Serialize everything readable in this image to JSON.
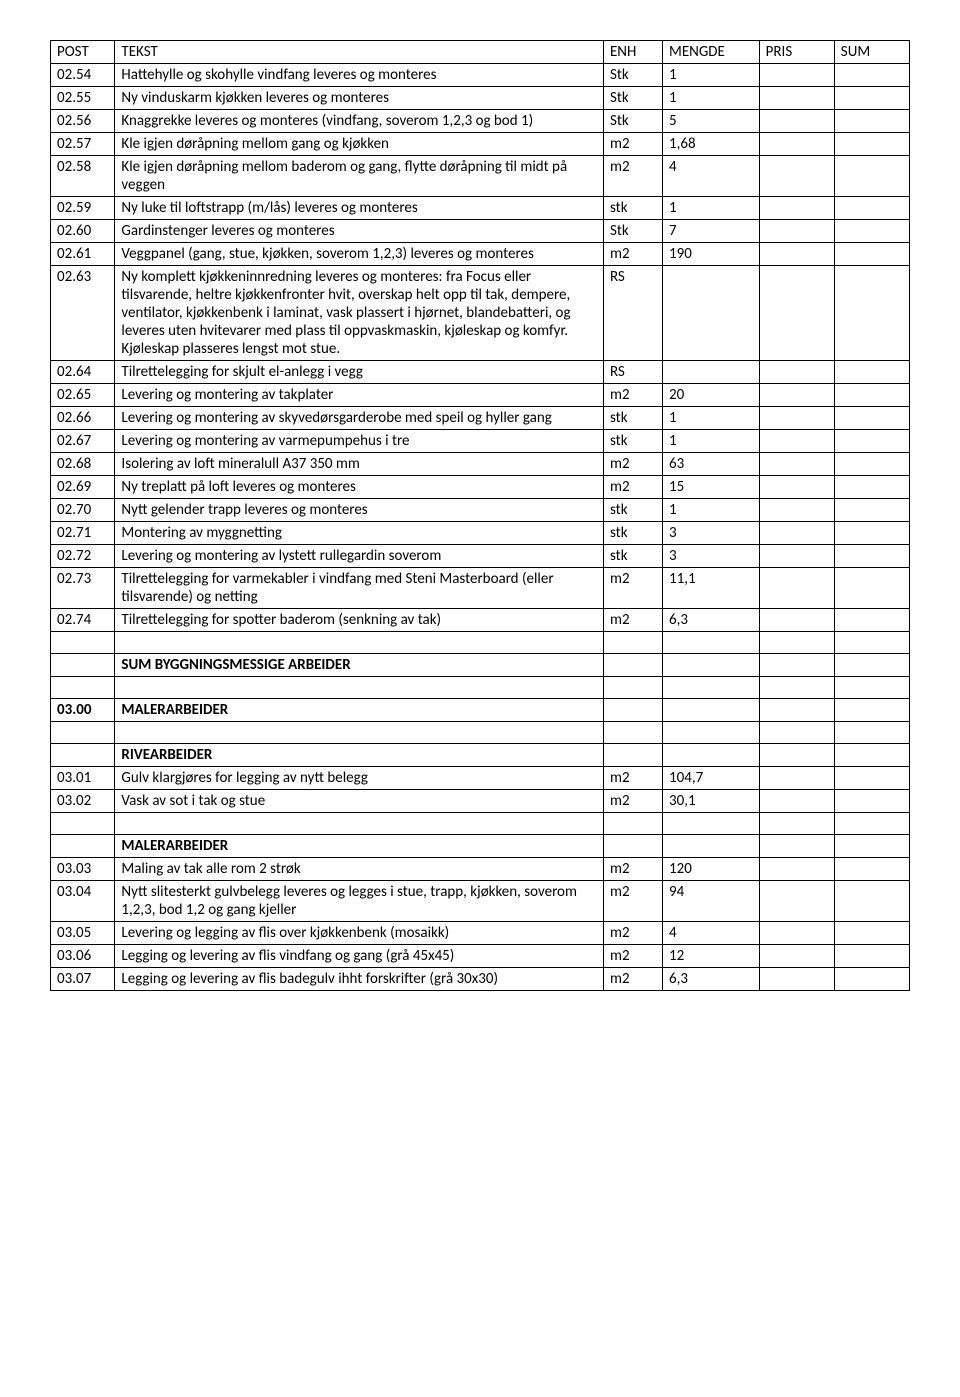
{
  "headers": {
    "post": "POST",
    "tekst": "TEKST",
    "enh": "ENH",
    "mengde": "MENGDE",
    "pris": "PRIS",
    "sum": "SUM"
  },
  "rows": [
    {
      "post": "02.54",
      "tekst": "Hattehylle og skohylle vindfang leveres og monteres",
      "enh": "Stk",
      "mengde": "1",
      "pris": "",
      "sum": "",
      "bold": false
    },
    {
      "post": "02.55",
      "tekst": "Ny vinduskarm kjøkken leveres og monteres",
      "enh": "Stk",
      "mengde": "1",
      "pris": "",
      "sum": "",
      "bold": false
    },
    {
      "post": "02.56",
      "tekst": "Knaggrekke leveres og monteres (vindfang, soverom 1,2,3 og bod 1)",
      "enh": "Stk",
      "mengde": "5",
      "pris": "",
      "sum": "",
      "bold": false
    },
    {
      "post": "02.57",
      "tekst": "Kle igjen døråpning mellom gang og kjøkken",
      "enh": "m2",
      "mengde": "1,68",
      "pris": "",
      "sum": "",
      "bold": false
    },
    {
      "post": "02.58",
      "tekst": "Kle igjen døråpning mellom baderom og gang, flytte døråpning til midt på veggen",
      "enh": "m2",
      "mengde": "4",
      "pris": "",
      "sum": "",
      "bold": false
    },
    {
      "post": "02.59",
      "tekst": "Ny luke til loftstrapp (m/lås) leveres og monteres",
      "enh": "stk",
      "mengde": "1",
      "pris": "",
      "sum": "",
      "bold": false
    },
    {
      "post": "02.60",
      "tekst": "Gardinstenger leveres og monteres",
      "enh": "Stk",
      "mengde": "7",
      "pris": "",
      "sum": "",
      "bold": false
    },
    {
      "post": "02.61",
      "tekst": "Veggpanel (gang, stue, kjøkken, soverom 1,2,3) leveres og monteres",
      "enh": "m2",
      "mengde": "190",
      "pris": "",
      "sum": "",
      "bold": false
    },
    {
      "post": "02.63",
      "tekst": "Ny komplett kjøkkeninnredning leveres og monteres: fra Focus eller tilsvarende, heltre kjøkkenfronter hvit, overskap helt opp til tak, dempere, ventilator, kjøkkenbenk i laminat, vask plassert i hjørnet, blandebatteri, og leveres uten hvitevarer med plass til oppvaskmaskin, kjøleskap og komfyr. Kjøleskap plasseres lengst mot stue.",
      "enh": "RS",
      "mengde": "",
      "pris": "",
      "sum": "",
      "bold": false
    },
    {
      "post": "02.64",
      "tekst": "Tilrettelegging for skjult el-anlegg i vegg",
      "enh": "RS",
      "mengde": "",
      "pris": "",
      "sum": "",
      "bold": false
    },
    {
      "post": "02.65",
      "tekst": "Levering og montering av takplater",
      "enh": "m2",
      "mengde": "20",
      "pris": "",
      "sum": "",
      "bold": false
    },
    {
      "post": "02.66",
      "tekst": "Levering og montering av skyvedørsgarderobe med speil og hyller gang",
      "enh": "stk",
      "mengde": "1",
      "pris": "",
      "sum": "",
      "bold": false
    },
    {
      "post": "02.67",
      "tekst": "Levering og montering av varmepumpehus i tre",
      "enh": "stk",
      "mengde": "1",
      "pris": "",
      "sum": "",
      "bold": false
    },
    {
      "post": "02.68",
      "tekst": "Isolering av loft mineralull A37 350 mm",
      "enh": "m2",
      "mengde": "63",
      "pris": "",
      "sum": "",
      "bold": false
    },
    {
      "post": "02.69",
      "tekst": "Ny treplatt på loft leveres og monteres",
      "enh": "m2",
      "mengde": "15",
      "pris": "",
      "sum": "",
      "bold": false
    },
    {
      "post": "02.70",
      "tekst": "Nytt gelender trapp leveres og monteres",
      "enh": "stk",
      "mengde": "1",
      "pris": "",
      "sum": "",
      "bold": false
    },
    {
      "post": "02.71",
      "tekst": "Montering av myggnetting",
      "enh": "stk",
      "mengde": "3",
      "pris": "",
      "sum": "",
      "bold": false
    },
    {
      "post": "02.72",
      "tekst": "Levering og montering av lystett rullegardin soverom",
      "enh": "stk",
      "mengde": "3",
      "pris": "",
      "sum": "",
      "bold": false
    },
    {
      "post": "02.73",
      "tekst": "Tilrettelegging for varmekabler i vindfang med Steni Masterboard (eller tilsvarende) og netting",
      "enh": "m2",
      "mengde": "11,1",
      "pris": "",
      "sum": "",
      "bold": false
    },
    {
      "post": "02.74",
      "tekst": "Tilrettelegging for spotter baderom (senkning av tak)",
      "enh": "m2",
      "mengde": "6,3",
      "pris": "",
      "sum": "",
      "bold": false
    },
    {
      "post": "",
      "tekst": "",
      "enh": "",
      "mengde": "",
      "pris": "",
      "sum": "",
      "bold": false,
      "empty": true
    },
    {
      "post": "",
      "tekst": "SUM  BYGGNINGSMESSIGE ARBEIDER",
      "enh": "",
      "mengde": "",
      "pris": "",
      "sum": "",
      "bold": true
    },
    {
      "post": "",
      "tekst": "",
      "enh": "",
      "mengde": "",
      "pris": "",
      "sum": "",
      "bold": false,
      "empty": true
    },
    {
      "post": "03.00",
      "tekst": "MALERARBEIDER",
      "enh": "",
      "mengde": "",
      "pris": "",
      "sum": "",
      "bold": true
    },
    {
      "post": "",
      "tekst": "",
      "enh": "",
      "mengde": "",
      "pris": "",
      "sum": "",
      "bold": false,
      "empty": true
    },
    {
      "post": "",
      "tekst": "RIVEARBEIDER",
      "enh": "",
      "mengde": "",
      "pris": "",
      "sum": "",
      "bold": true
    },
    {
      "post": "03.01",
      "tekst": "Gulv klargjøres for legging av nytt belegg",
      "enh": "m2",
      "mengde": "104,7",
      "pris": "",
      "sum": "",
      "bold": false
    },
    {
      "post": "03.02",
      "tekst": "Vask av sot i tak og stue",
      "enh": "m2",
      "mengde": "30,1",
      "pris": "",
      "sum": "",
      "bold": false
    },
    {
      "post": "",
      "tekst": "",
      "enh": "",
      "mengde": "",
      "pris": "",
      "sum": "",
      "bold": false,
      "empty": true
    },
    {
      "post": "",
      "tekst": "MALERARBEIDER",
      "enh": "",
      "mengde": "",
      "pris": "",
      "sum": "",
      "bold": true
    },
    {
      "post": "03.03",
      "tekst": "Maling av tak alle rom 2 strøk",
      "enh": "m2",
      "mengde": "120",
      "pris": "",
      "sum": "",
      "bold": false
    },
    {
      "post": "03.04",
      "tekst": "Nytt slitesterkt gulvbelegg leveres og legges i stue, trapp, kjøkken, soverom 1,2,3, bod 1,2 og gang kjeller",
      "enh": "m2",
      "mengde": "94",
      "pris": "",
      "sum": "",
      "bold": false
    },
    {
      "post": "03.05",
      "tekst": "Levering og legging av flis over kjøkkenbenk (mosaikk)",
      "enh": "m2",
      "mengde": "4",
      "pris": "",
      "sum": "",
      "bold": false
    },
    {
      "post": "03.06",
      "tekst": "Legging og levering av flis vindfang og gang (grå 45x45)",
      "enh": "m2",
      "mengde": "12",
      "pris": "",
      "sum": "",
      "bold": false
    },
    {
      "post": "03.07",
      "tekst": "Legging og levering av flis badegulv ihht forskrifter (grå 30x30)",
      "enh": "m2",
      "mengde": "6,3",
      "pris": "",
      "sum": "",
      "bold": false
    }
  ]
}
